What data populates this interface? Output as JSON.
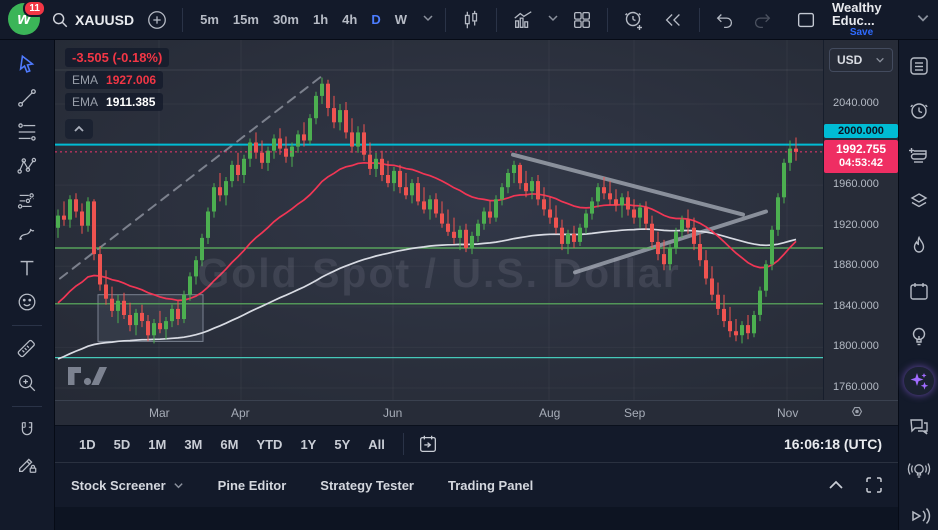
{
  "topbar": {
    "badge": "11",
    "symbol": "XAUUSD",
    "timeframes": [
      "5m",
      "15m",
      "30m",
      "1h",
      "4h",
      "D",
      "W"
    ],
    "active_timeframe": "D",
    "layout_name": "Wealthy Educ...",
    "save_label": "Save"
  },
  "legend": {
    "change": "-3.505 (-0.18%)",
    "indicators": [
      {
        "label": "EMA",
        "value": "1927.006",
        "color": "#f23645"
      },
      {
        "label": "EMA",
        "value": "1911.385",
        "color": "#ffffff"
      }
    ]
  },
  "price_axis": {
    "currency": "USD",
    "alert_label": {
      "text": "2000.000",
      "color": "#00bcd4"
    },
    "current": {
      "price": "1992.755",
      "countdown": "04:53:42"
    }
  },
  "range_toolbar": {
    "ranges": [
      "1D",
      "5D",
      "1M",
      "3M",
      "6M",
      "YTD",
      "1Y",
      "5Y",
      "All"
    ],
    "clock": "16:06:18 (UTC)"
  },
  "footer": {
    "items": [
      "Stock Screener",
      "Pine Editor",
      "Strategy Tester",
      "Trading Panel"
    ]
  },
  "watermark": "Gold Spot / U.S. Dollar",
  "icons": {
    "topbar": [
      "search-icon",
      "compare-plus-icon",
      "candles-icon",
      "indicators-icon",
      "grid-layout-icon",
      "alert-plus-icon",
      "replay-icon",
      "undo-icon",
      "redo-icon",
      "layout-square-icon",
      "chevron-down-icon"
    ],
    "left_toolbar": [
      "cursor-icon",
      "trendline-icon",
      "fib-retracement-icon",
      "xabcd-pattern-icon",
      "forecast-icon",
      "brush-icon",
      "text-icon",
      "emoji-icon",
      "ruler-icon",
      "zoom-in-icon",
      "magnet-icon",
      "lock-drawings-icon"
    ],
    "right_sidebar": [
      "watchlist-icon",
      "alerts-clock-icon",
      "journal-plus-icon",
      "object-tree-icon",
      "hotlists-flame-icon",
      "calendar-icon",
      "ideas-bulb-icon",
      "ai-sparkles-icon",
      "chat-icon",
      "live-ideas-icon",
      "streams-play-icon"
    ],
    "misc": [
      "gear-icon",
      "go-to-date-icon",
      "chevron-up-icon",
      "maximize-icon",
      "tradingview-logo"
    ]
  },
  "chart_data": {
    "type": "candlestick",
    "symbol": "XAUUSD",
    "title": "Gold Spot / U.S. Dollar",
    "interval": "1D",
    "colors": {
      "up": "#4caf50",
      "down": "#ef5350"
    },
    "y_scale": {
      "p1": 2040,
      "y1": 64,
      "p2": 1760,
      "y2": 348
    },
    "x_spacing": 6,
    "y_ticks": [
      {
        "price": 2040,
        "label": "2040.000"
      },
      {
        "price": 1960,
        "label": "1960.000"
      },
      {
        "price": 1920,
        "label": "1920.000"
      },
      {
        "price": 1880,
        "label": "1880.000"
      },
      {
        "price": 1840,
        "label": "1840.000"
      },
      {
        "price": 1800,
        "label": "1800.000"
      },
      {
        "price": 1760,
        "label": "1760.000"
      }
    ],
    "x_ticks": [
      {
        "label": "Mar",
        "x": 104
      },
      {
        "label": "Apr",
        "x": 186
      },
      {
        "label": "Jun",
        "x": 338
      },
      {
        "label": "Aug",
        "x": 494
      },
      {
        "label": "Sep",
        "x": 579
      },
      {
        "label": "Nov",
        "x": 732
      }
    ],
    "h_lines": [
      {
        "price": 2000,
        "color": "#00bcd4",
        "width": 2,
        "label": "2000.000"
      },
      {
        "price": 1898,
        "color": "#5fb760",
        "width": 1.2
      },
      {
        "price": 1843,
        "color": "#5fb760",
        "width": 1.2
      },
      {
        "price": 1790,
        "color": "#45c9b9",
        "width": 1.2
      }
    ],
    "current_price": {
      "value": 1992.755,
      "change": "-3.505 (-0.18%)",
      "countdown": "04:53:42",
      "color": "#f0356b"
    },
    "box": {
      "x1": 43,
      "x2": 148,
      "p_top": 1852,
      "p_bottom": 1806
    },
    "trendlines": [
      {
        "x1": 5,
        "p1": 1868,
        "x2": 270,
        "p2": 2070,
        "style": "dashed",
        "color": "#8a8f9b",
        "width": 2
      },
      {
        "x1": 458,
        "p1": 1990,
        "x2": 688,
        "p2": 1931,
        "style": "solid",
        "color": "#9aa0ab",
        "width": 4
      },
      {
        "x1": 520,
        "p1": 1874,
        "x2": 711,
        "p2": 1934,
        "style": "solid",
        "color": "#9aa0ab",
        "width": 4
      }
    ],
    "emas": [
      {
        "period": 30,
        "seed": 1838,
        "color": "#f23655",
        "legend": "1927.006"
      },
      {
        "period": 110,
        "seed": 1786,
        "color": "#d8dbe3",
        "legend": "1911.385"
      }
    ],
    "candles": [
      [
        1918,
        1936,
        1908,
        1930
      ],
      [
        1930,
        1944,
        1920,
        1926
      ],
      [
        1926,
        1950,
        1918,
        1946
      ],
      [
        1946,
        1952,
        1928,
        1934
      ],
      [
        1934,
        1942,
        1912,
        1920
      ],
      [
        1920,
        1948,
        1914,
        1944
      ],
      [
        1944,
        1946,
        1886,
        1892
      ],
      [
        1892,
        1900,
        1856,
        1862
      ],
      [
        1862,
        1876,
        1842,
        1848
      ],
      [
        1848,
        1860,
        1830,
        1836
      ],
      [
        1836,
        1852,
        1824,
        1846
      ],
      [
        1846,
        1854,
        1828,
        1832
      ],
      [
        1832,
        1844,
        1816,
        1822
      ],
      [
        1822,
        1838,
        1812,
        1834
      ],
      [
        1834,
        1842,
        1820,
        1826
      ],
      [
        1826,
        1832,
        1806,
        1812
      ],
      [
        1812,
        1828,
        1804,
        1824
      ],
      [
        1824,
        1836,
        1814,
        1818
      ],
      [
        1818,
        1830,
        1808,
        1826
      ],
      [
        1826,
        1842,
        1820,
        1838
      ],
      [
        1838,
        1846,
        1822,
        1828
      ],
      [
        1828,
        1856,
        1824,
        1852
      ],
      [
        1852,
        1874,
        1846,
        1870
      ],
      [
        1870,
        1890,
        1862,
        1886
      ],
      [
        1886,
        1912,
        1880,
        1908
      ],
      [
        1908,
        1938,
        1902,
        1934
      ],
      [
        1934,
        1962,
        1928,
        1958
      ],
      [
        1958,
        1972,
        1944,
        1950
      ],
      [
        1950,
        1968,
        1940,
        1964
      ],
      [
        1964,
        1984,
        1958,
        1980
      ],
      [
        1980,
        1992,
        1964,
        1970
      ],
      [
        1970,
        1990,
        1962,
        1986
      ],
      [
        1986,
        2006,
        1978,
        2002
      ],
      [
        2002,
        2012,
        1986,
        1992
      ],
      [
        1992,
        2004,
        1976,
        1982
      ],
      [
        1982,
        1998,
        1974,
        1994
      ],
      [
        1994,
        2010,
        1986,
        2006
      ],
      [
        2006,
        2016,
        1990,
        1996
      ],
      [
        1996,
        2008,
        1982,
        1988
      ],
      [
        1988,
        2002,
        1978,
        1998
      ],
      [
        1998,
        2014,
        1992,
        2010
      ],
      [
        2010,
        2022,
        1998,
        2004
      ],
      [
        2004,
        2030,
        2000,
        2026
      ],
      [
        2026,
        2052,
        2020,
        2048
      ],
      [
        2048,
        2066,
        2040,
        2060
      ],
      [
        2060,
        2064,
        2028,
        2036
      ],
      [
        2036,
        2048,
        2016,
        2022
      ],
      [
        2022,
        2040,
        2014,
        2034
      ],
      [
        2034,
        2042,
        2006,
        2012
      ],
      [
        2012,
        2026,
        1992,
        1998
      ],
      [
        1998,
        2018,
        1992,
        2012
      ],
      [
        2012,
        2020,
        1984,
        1990
      ],
      [
        1990,
        2002,
        1970,
        1976
      ],
      [
        1976,
        1992,
        1968,
        1986
      ],
      [
        1986,
        1994,
        1964,
        1970
      ],
      [
        1970,
        1984,
        1958,
        1962
      ],
      [
        1962,
        1978,
        1954,
        1974
      ],
      [
        1974,
        1980,
        1952,
        1958
      ],
      [
        1958,
        1972,
        1946,
        1950
      ],
      [
        1950,
        1966,
        1942,
        1962
      ],
      [
        1962,
        1968,
        1940,
        1944
      ],
      [
        1944,
        1958,
        1932,
        1936
      ],
      [
        1936,
        1950,
        1926,
        1946
      ],
      [
        1946,
        1952,
        1928,
        1932
      ],
      [
        1932,
        1944,
        1918,
        1922
      ],
      [
        1922,
        1936,
        1910,
        1914
      ],
      [
        1914,
        1928,
        1902,
        1908
      ],
      [
        1908,
        1920,
        1896,
        1916
      ],
      [
        1916,
        1922,
        1894,
        1898
      ],
      [
        1898,
        1914,
        1892,
        1910
      ],
      [
        1910,
        1926,
        1904,
        1922
      ],
      [
        1922,
        1938,
        1916,
        1934
      ],
      [
        1934,
        1944,
        1922,
        1928
      ],
      [
        1928,
        1950,
        1924,
        1946
      ],
      [
        1946,
        1962,
        1940,
        1958
      ],
      [
        1958,
        1976,
        1952,
        1972
      ],
      [
        1972,
        1984,
        1962,
        1980
      ],
      [
        1980,
        1982,
        1956,
        1962
      ],
      [
        1962,
        1974,
        1948,
        1954
      ],
      [
        1954,
        1968,
        1946,
        1964
      ],
      [
        1964,
        1970,
        1940,
        1946
      ],
      [
        1946,
        1958,
        1930,
        1936
      ],
      [
        1936,
        1948,
        1922,
        1928
      ],
      [
        1928,
        1940,
        1912,
        1918
      ],
      [
        1918,
        1926,
        1896,
        1902
      ],
      [
        1902,
        1916,
        1892,
        1912
      ],
      [
        1912,
        1920,
        1898,
        1904
      ],
      [
        1904,
        1922,
        1900,
        1918
      ],
      [
        1918,
        1936,
        1912,
        1932
      ],
      [
        1932,
        1948,
        1926,
        1944
      ],
      [
        1944,
        1962,
        1938,
        1958
      ],
      [
        1958,
        1968,
        1946,
        1952
      ],
      [
        1952,
        1964,
        1940,
        1946
      ],
      [
        1946,
        1956,
        1934,
        1940
      ],
      [
        1940,
        1952,
        1928,
        1948
      ],
      [
        1948,
        1954,
        1930,
        1936
      ],
      [
        1936,
        1946,
        1922,
        1928
      ],
      [
        1928,
        1942,
        1918,
        1938
      ],
      [
        1938,
        1944,
        1916,
        1922
      ],
      [
        1922,
        1930,
        1898,
        1904
      ],
      [
        1904,
        1914,
        1886,
        1892
      ],
      [
        1892,
        1906,
        1876,
        1882
      ],
      [
        1882,
        1902,
        1876,
        1898
      ],
      [
        1898,
        1918,
        1892,
        1914
      ],
      [
        1914,
        1930,
        1908,
        1926
      ],
      [
        1926,
        1936,
        1912,
        1918
      ],
      [
        1918,
        1928,
        1896,
        1902
      ],
      [
        1902,
        1912,
        1880,
        1886
      ],
      [
        1886,
        1896,
        1862,
        1868
      ],
      [
        1868,
        1880,
        1846,
        1852
      ],
      [
        1852,
        1864,
        1832,
        1838
      ],
      [
        1838,
        1852,
        1820,
        1826
      ],
      [
        1826,
        1840,
        1810,
        1816
      ],
      [
        1816,
        1828,
        1806,
        1812
      ],
      [
        1812,
        1826,
        1804,
        1822
      ],
      [
        1822,
        1832,
        1808,
        1814
      ],
      [
        1814,
        1836,
        1810,
        1832
      ],
      [
        1832,
        1860,
        1826,
        1856
      ],
      [
        1856,
        1886,
        1850,
        1882
      ],
      [
        1882,
        1920,
        1876,
        1916
      ],
      [
        1916,
        1952,
        1910,
        1948
      ],
      [
        1948,
        1986,
        1942,
        1982
      ],
      [
        1982,
        2004,
        1974,
        1996
      ],
      [
        1996,
        2007,
        1984,
        1992.755
      ]
    ]
  }
}
